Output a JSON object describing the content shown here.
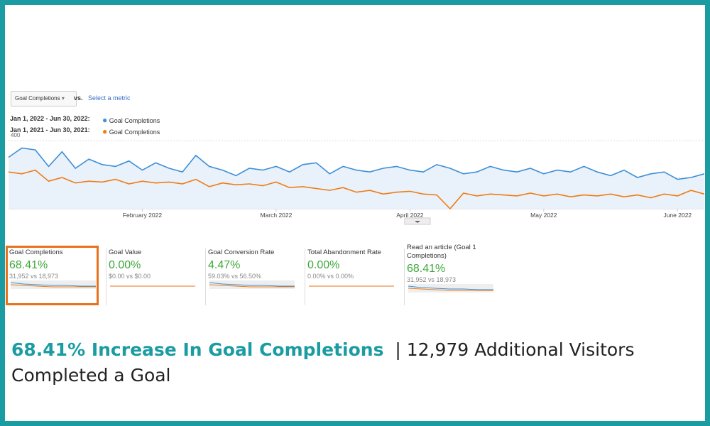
{
  "metric_selector": {
    "selected": "Goal Completions",
    "vs": "vs.",
    "placeholder": "Select a metric"
  },
  "chart_data": {
    "type": "line",
    "categories": [
      null,
      null,
      null,
      null,
      null,
      null,
      null,
      null,
      null,
      null,
      "February 2022",
      null,
      null,
      null,
      null,
      null,
      null,
      null,
      null,
      null,
      "March 2022",
      null,
      null,
      null,
      null,
      null,
      null,
      null,
      null,
      null,
      "April 2022",
      null,
      null,
      null,
      null,
      null,
      null,
      null,
      null,
      null,
      "May 2022",
      null,
      null,
      null,
      null,
      null,
      null,
      null,
      null,
      null,
      "June 2022",
      null,
      null
    ],
    "series": [
      {
        "name": "Goal Completions",
        "range": "Jan 1, 2022 - Jun 30, 2022:",
        "color": "#3d8fd6",
        "values": [
          310,
          360,
          350,
          260,
          340,
          250,
          300,
          270,
          260,
          290,
          240,
          280,
          250,
          230,
          320,
          260,
          240,
          210,
          250,
          240,
          260,
          230,
          270,
          280,
          220,
          260,
          240,
          230,
          250,
          260,
          240,
          230,
          270,
          250,
          220,
          230,
          260,
          240,
          230,
          250,
          220,
          240,
          230,
          260,
          230,
          210,
          240,
          200,
          220,
          230,
          190,
          200,
          220
        ]
      },
      {
        "name": "Goal Completions",
        "range": "Jan 1, 2021 - Jun 30, 2021:",
        "color": "#f07c12",
        "values": [
          230,
          220,
          240,
          180,
          200,
          170,
          180,
          175,
          190,
          165,
          180,
          170,
          175,
          165,
          190,
          150,
          170,
          160,
          165,
          155,
          175,
          145,
          150,
          140,
          130,
          145,
          120,
          130,
          110,
          120,
          125,
          110,
          105,
          30,
          115,
          100,
          110,
          105,
          100,
          115,
          100,
          110,
          95,
          105,
          100,
          110,
          95,
          105,
          90,
          110,
          100,
          130,
          110
        ]
      }
    ],
    "ylim": [
      30,
      420
    ],
    "yticks": [
      200,
      400
    ],
    "grid": true
  },
  "scorecards": [
    {
      "title": "Goal Completions",
      "value": "68.41%",
      "comparison": "31,952 vs 18,973"
    },
    {
      "title": "Goal Value",
      "value": "0.00%",
      "comparison": "$0.00 vs $0.00"
    },
    {
      "title": "Goal Conversion Rate",
      "value": "4.47%",
      "comparison": "59.03% vs 56.50%"
    },
    {
      "title": "Total Abandonment Rate",
      "value": "0.00%",
      "comparison": "0.00% vs 0.00%"
    },
    {
      "title": "Read an article (Goal 1 Completions)",
      "value": "68.41%",
      "comparison": "31,952 vs 18,973"
    }
  ],
  "headline": {
    "highlight": "68.41% Increase In Goal Completions",
    "rest": "| 12,979 Additional Visitors Completed a Goal"
  }
}
